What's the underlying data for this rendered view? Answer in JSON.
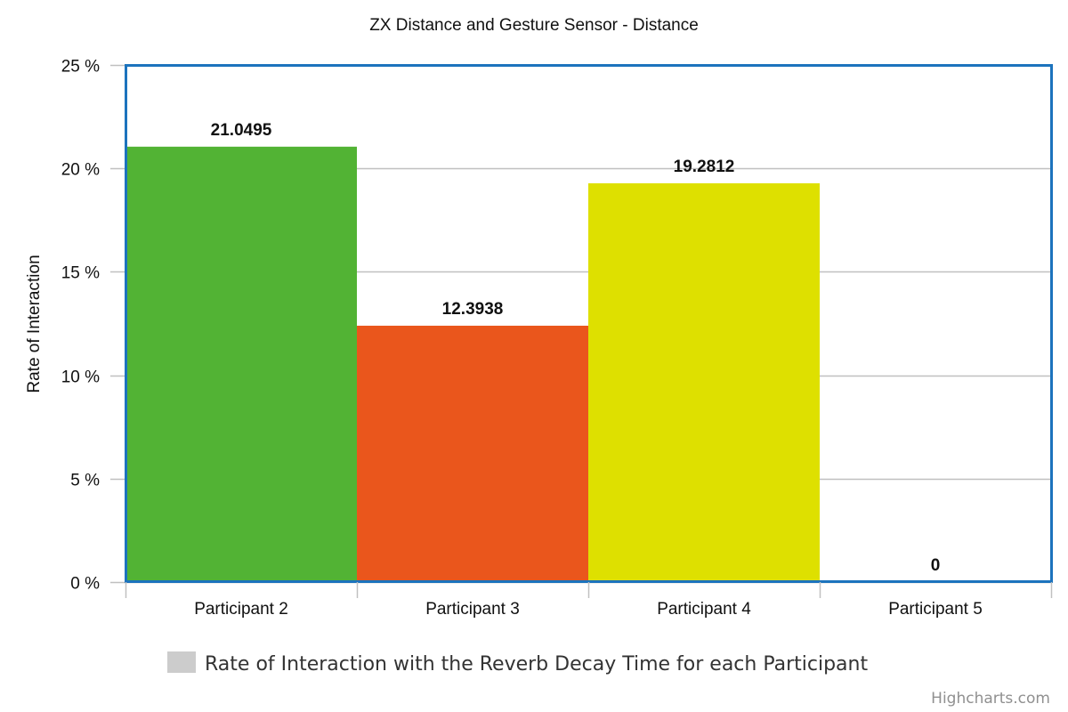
{
  "chart_data": {
    "type": "bar",
    "title": "ZX Distance and Gesture Sensor - Distance",
    "ylabel": "Rate of Interaction",
    "xlabel": "",
    "categories": [
      "Participant 2",
      "Participant 3",
      "Participant 4",
      "Participant 5"
    ],
    "series": [
      {
        "name": "Rate of Interaction with the Reverb Decay Time for each Participant",
        "values": [
          21.0495,
          12.3938,
          19.2812,
          0
        ],
        "data_labels": [
          "21.0495",
          "12.3938",
          "19.2812",
          "0"
        ],
        "colors": [
          "#52b334",
          "#ea561c",
          "#dee000",
          "#cccccc"
        ]
      }
    ],
    "ylim": [
      0,
      25
    ],
    "yticks": [
      0,
      5,
      10,
      15,
      20,
      25
    ],
    "ytick_labels": [
      "0 %",
      "5 %",
      "10 %",
      "15 %",
      "20 %",
      "25 %"
    ],
    "grid": true,
    "legend_position": "bottom-center",
    "legend_swatch_color": "#cccccc",
    "plot_border_color": "#1c73bd",
    "gridline_color": "#c0c0c0"
  },
  "credits": "Highcharts.com"
}
